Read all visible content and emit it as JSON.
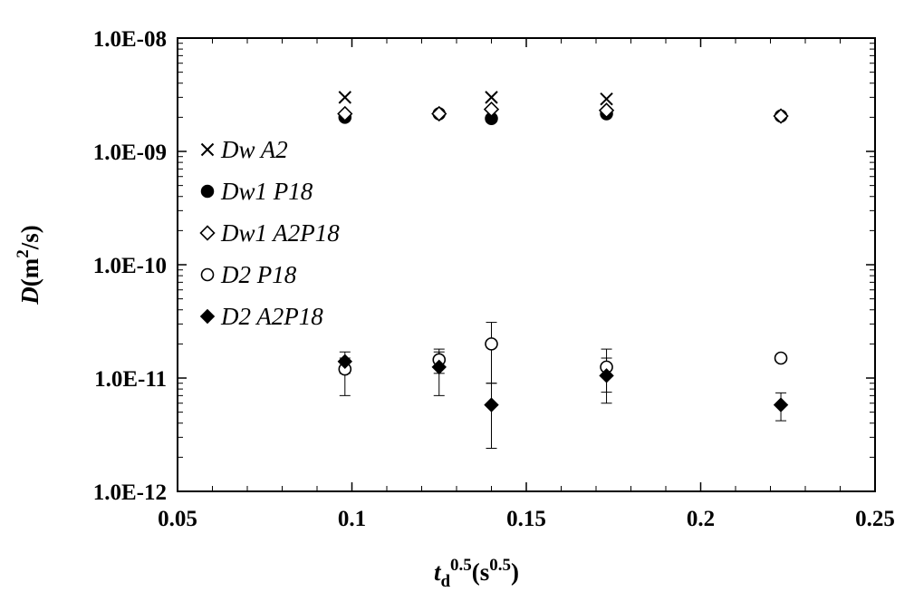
{
  "chart_data": {
    "type": "scatter",
    "xlabel": {
      "base": "t",
      "sub": "d",
      "sup": "0.5",
      "unit_open": "(s",
      "unit_sup": "0.5",
      "unit_close": ")"
    },
    "ylabel": {
      "base": "D",
      "unit_open": "(m",
      "unit_sup": "2",
      "unit_close": "/s)"
    },
    "xlim": [
      0.05,
      0.25
    ],
    "ylim": [
      1e-12,
      1e-08
    ],
    "y_scale": "log",
    "x_ticks": [
      0.05,
      0.1,
      0.15,
      0.2,
      0.25
    ],
    "x_tick_labels": [
      "0.05",
      "0.1",
      "0.15",
      "0.2",
      "0.25"
    ],
    "y_ticks": [
      1e-12,
      1e-11,
      1e-10,
      1e-09,
      1e-08
    ],
    "y_tick_labels": [
      "1.0E-12",
      "1.0E-11",
      "1.0E-10",
      "1.0E-09",
      "1.0E-08"
    ],
    "grid": false,
    "legend_position": "left",
    "series": [
      {
        "name": "Dw A2",
        "marker": "x",
        "x": [
          0.098,
          0.14,
          0.173
        ],
        "y": [
          3e-09,
          3e-09,
          2.9e-09
        ]
      },
      {
        "name": "Dw1  P18",
        "marker": "filled-circle",
        "x": [
          0.098,
          0.125,
          0.14,
          0.173,
          0.223
        ],
        "y": [
          2e-09,
          2.15e-09,
          1.95e-09,
          2.15e-09,
          2.05e-09
        ]
      },
      {
        "name": "Dw1  A2P18",
        "marker": "open-diamond",
        "x": [
          0.098,
          0.125,
          0.14,
          0.173,
          0.223
        ],
        "y": [
          2.15e-09,
          2.15e-09,
          2.35e-09,
          2.3e-09,
          2.05e-09
        ]
      },
      {
        "name": "D2  P18",
        "marker": "open-circle",
        "x": [
          0.098,
          0.125,
          0.14,
          0.173,
          0.223
        ],
        "y": [
          1.2e-11,
          1.45e-11,
          2e-11,
          1.25e-11,
          1.5e-11
        ],
        "err_low": [
          7e-12,
          1.1e-11,
          9e-12,
          7.5e-12,
          null
        ],
        "err_high": [
          1.5e-11,
          1.8e-11,
          3.1e-11,
          1.8e-11,
          null
        ]
      },
      {
        "name": "D2  A2P18",
        "marker": "filled-diamond",
        "x": [
          0.098,
          0.125,
          0.14,
          0.173,
          0.223
        ],
        "y": [
          1.4e-11,
          1.25e-11,
          5.8e-12,
          1.05e-11,
          5.8e-12
        ],
        "err_low": [
          1.1e-11,
          7e-12,
          2.4e-12,
          6e-12,
          4.2e-12
        ],
        "err_high": [
          1.7e-11,
          1.7e-11,
          9e-12,
          1.5e-11,
          7.4e-12
        ]
      }
    ]
  }
}
